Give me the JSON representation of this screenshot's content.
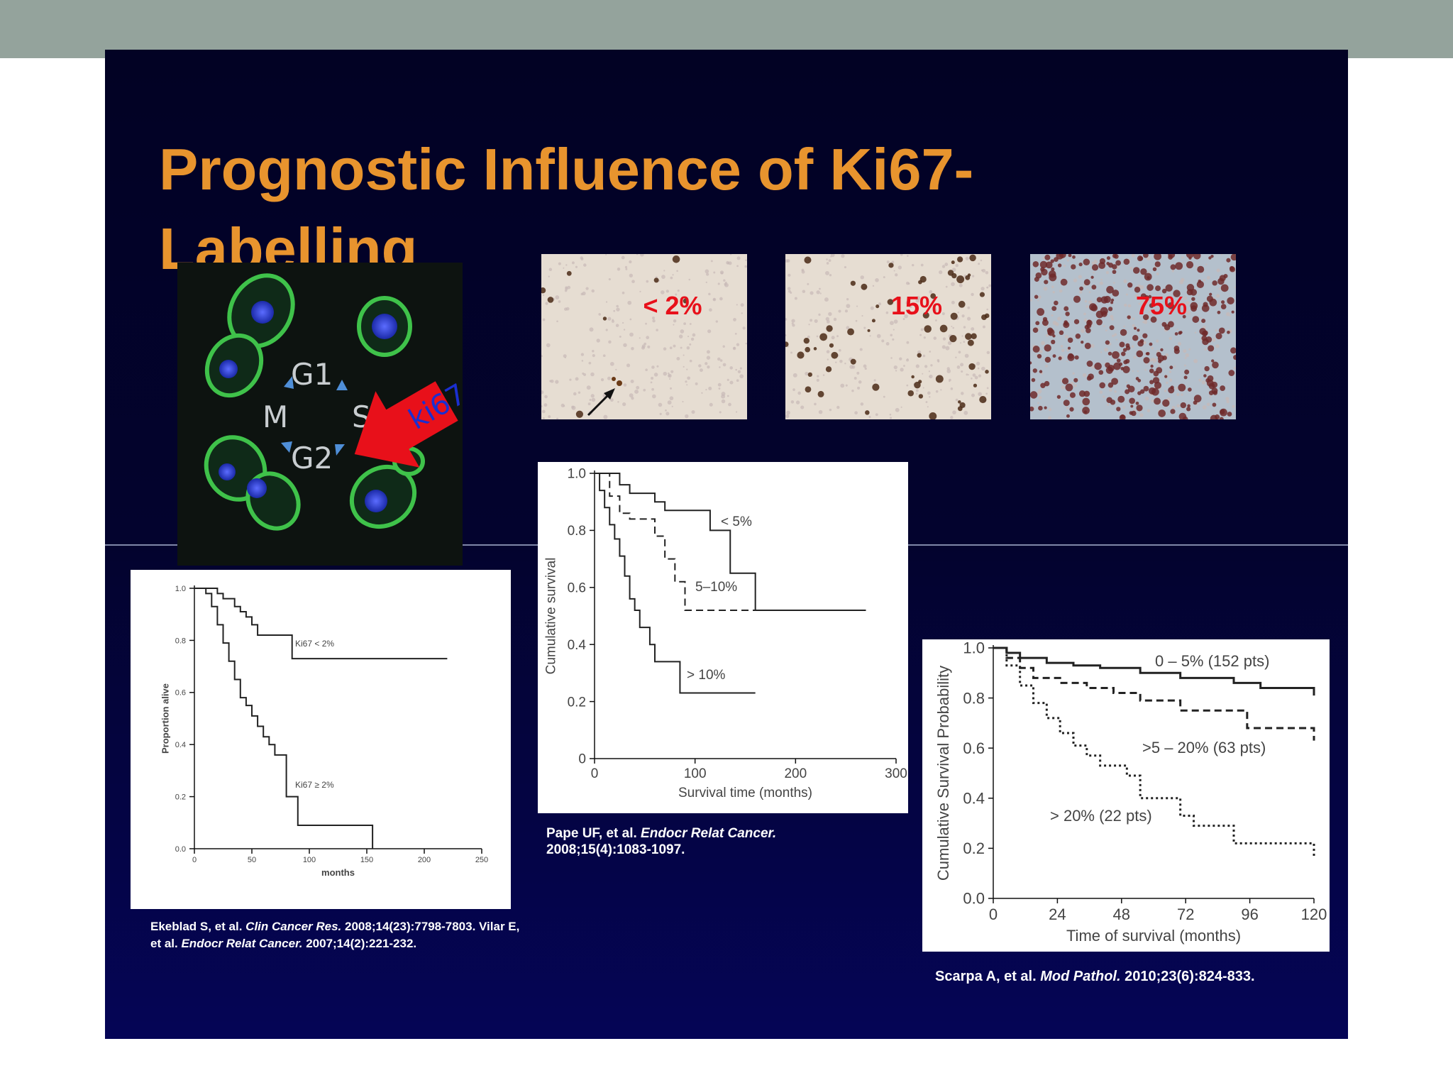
{
  "slide": {
    "title": "Prognostic Influence of Ki67-Labelling"
  },
  "cell_cycle_figure": {
    "phases": [
      "G1",
      "S",
      "G2",
      "M"
    ],
    "arrow_label": "ki67",
    "colors": {
      "arrow": "#e8101a",
      "arrow_text": "#1a2fd0",
      "cell_membrane": "#3fc24a",
      "nucleus": "#2b3fd8"
    }
  },
  "micrographs": [
    {
      "label": "< 2%",
      "stain_density": 0.02
    },
    {
      "label": "15%",
      "stain_density": 0.15
    },
    {
      "label": "75%",
      "stain_density": 0.75
    }
  ],
  "citations": {
    "ekeblad": {
      "pre": "Ekeblad S, et al. ",
      "journal1": "Clin Cancer Res.",
      "mid": " 2008;14(23):7798-7803. Vilar E, et al. ",
      "journal2": "Endocr Relat Cancer.",
      "post": " 2007;14(2):221-232."
    },
    "pape": {
      "pre": "Pape UF, et al. ",
      "journal": "Endocr Relat Cancer.",
      "post": " 2008;15(4):1083-1097."
    },
    "scarpa": {
      "pre": "Scarpa A, et al. ",
      "journal": "Mod Pathol.",
      "post": " 2010;23(6):824-833."
    }
  },
  "chart_data": [
    {
      "type": "line",
      "step": true,
      "xlabel": "months",
      "ylabel": "Proportion alive",
      "xlim": [
        0,
        250
      ],
      "ylim": [
        0,
        1.0
      ],
      "xticks": [
        "0",
        "50",
        "100",
        "150",
        "200",
        "250"
      ],
      "yticks": [
        "0.0",
        "0.2",
        "0.4",
        "0.6",
        "0.8",
        "1.0"
      ],
      "series": [
        {
          "name": "Ki67 < 2%",
          "dash": "solid",
          "x": [
            0,
            15,
            20,
            25,
            35,
            40,
            45,
            50,
            55,
            70,
            85,
            100,
            140,
            175,
            220
          ],
          "y": [
            1.0,
            1.0,
            0.98,
            0.96,
            0.93,
            0.91,
            0.89,
            0.86,
            0.82,
            0.82,
            0.73,
            0.73,
            0.73,
            0.73,
            0.73
          ]
        },
        {
          "name": "Ki67 ≥ 2%",
          "dash": "solid",
          "x": [
            0,
            10,
            15,
            20,
            25,
            30,
            35,
            40,
            45,
            50,
            55,
            60,
            65,
            70,
            75,
            80,
            85,
            90,
            95,
            155
          ],
          "y": [
            1.0,
            0.98,
            0.93,
            0.86,
            0.79,
            0.72,
            0.65,
            0.58,
            0.55,
            0.51,
            0.47,
            0.43,
            0.4,
            0.36,
            0.36,
            0.2,
            0.2,
            0.09,
            0.09,
            0.0
          ]
        }
      ]
    },
    {
      "type": "line",
      "step": true,
      "xlabel": "Survival time (months)",
      "ylabel": "Cumulative survival",
      "xlim": [
        0,
        300
      ],
      "ylim": [
        0,
        1.0
      ],
      "xticks": [
        "0",
        "100",
        "200",
        "300"
      ],
      "yticks": [
        "0",
        "0.2",
        "0.4",
        "0.6",
        "0.8",
        "1.0"
      ],
      "series": [
        {
          "name": "< 5%",
          "dash": "solid",
          "x": [
            0,
            25,
            35,
            60,
            70,
            115,
            135,
            160,
            270
          ],
          "y": [
            1.0,
            0.96,
            0.93,
            0.9,
            0.87,
            0.8,
            0.65,
            0.52,
            0.52
          ]
        },
        {
          "name": "5–10%",
          "dash": "dashed",
          "x": [
            0,
            15,
            25,
            35,
            60,
            70,
            80,
            90,
            160,
            270
          ],
          "y": [
            1.0,
            0.92,
            0.86,
            0.84,
            0.78,
            0.7,
            0.62,
            0.52,
            0.52,
            0.52
          ]
        },
        {
          "name": "> 10%",
          "dash": "solid",
          "x": [
            0,
            5,
            10,
            15,
            20,
            25,
            30,
            35,
            40,
            45,
            55,
            60,
            85,
            160
          ],
          "y": [
            1.0,
            0.94,
            0.88,
            0.82,
            0.77,
            0.71,
            0.64,
            0.56,
            0.52,
            0.46,
            0.4,
            0.34,
            0.23,
            0.23
          ]
        }
      ]
    },
    {
      "type": "line",
      "step": true,
      "xlabel": "Time of survival (months)",
      "ylabel": "Cumulative Survival Probability",
      "xlim": [
        0,
        120
      ],
      "ylim": [
        0,
        1.0
      ],
      "xticks": [
        "0",
        "24",
        "48",
        "72",
        "96",
        "120"
      ],
      "yticks": [
        "0.0",
        "0.2",
        "0.4",
        "0.6",
        "0.8",
        "1.0"
      ],
      "series": [
        {
          "name": "0 – 5% (152 pts)",
          "dash": "solid",
          "x": [
            0,
            5,
            10,
            20,
            30,
            40,
            55,
            70,
            90,
            100,
            119,
            120
          ],
          "y": [
            1.0,
            0.98,
            0.96,
            0.94,
            0.93,
            0.92,
            0.9,
            0.88,
            0.86,
            0.84,
            0.84,
            0.81
          ]
        },
        {
          "name": ">5 – 20% (63 pts)",
          "dash": "dashed",
          "x": [
            0,
            5,
            10,
            15,
            25,
            35,
            45,
            55,
            70,
            85,
            95,
            115,
            120
          ],
          "y": [
            1.0,
            0.96,
            0.92,
            0.88,
            0.86,
            0.84,
            0.82,
            0.79,
            0.75,
            0.75,
            0.68,
            0.68,
            0.63
          ]
        },
        {
          "name": "> 20% (22 pts)",
          "dash": "dotted",
          "x": [
            0,
            5,
            10,
            15,
            20,
            25,
            30,
            35,
            40,
            50,
            55,
            60,
            70,
            75,
            85,
            90,
            110,
            120
          ],
          "y": [
            1.0,
            0.93,
            0.85,
            0.78,
            0.72,
            0.66,
            0.61,
            0.57,
            0.53,
            0.49,
            0.4,
            0.4,
            0.33,
            0.29,
            0.29,
            0.22,
            0.22,
            0.17
          ]
        }
      ]
    }
  ]
}
